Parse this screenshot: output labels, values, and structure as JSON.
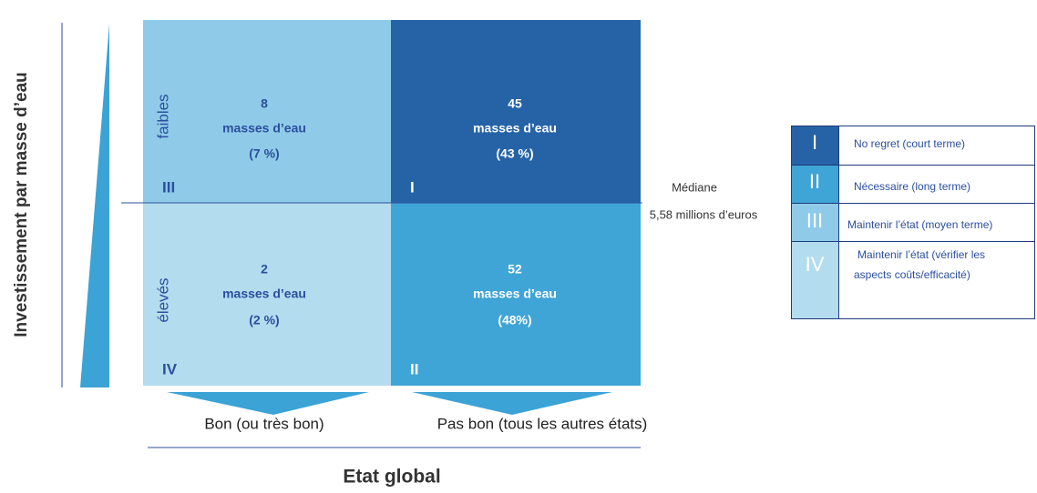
{
  "axis": {
    "y_label": "Investissement par masse d’eau",
    "rows": [
      "faibles",
      "élevés"
    ],
    "x_label": "Etat global",
    "columns": [
      "Bon (ou très bon)",
      "Pas bon (tous les autres états)"
    ]
  },
  "quadrants": [
    {
      "numeral": "III",
      "count": 8,
      "unit": "masses d’eau",
      "share": "(7 %)"
    },
    {
      "numeral": "I",
      "count": 45,
      "unit": "masses d’eau",
      "share": "(43 %)"
    },
    {
      "numeral": "IV",
      "count": 2,
      "unit": "masses d’eau",
      "share": "(2 %)"
    },
    {
      "numeral": "II",
      "count": 52,
      "unit": "masses d’eau",
      "share": "(48%)"
    }
  ],
  "median": {
    "label": "Médiane",
    "value": "5,58 millions d’euros"
  },
  "legend": [
    {
      "numeral": "I",
      "text": [
        "No regret (court terme)"
      ]
    },
    {
      "numeral": "II",
      "text": [
        "Nécessaire (long terme)"
      ]
    },
    {
      "numeral": "III",
      "text": [
        "Maintenir l’état (moyen terme)"
      ]
    },
    {
      "numeral": "IV",
      "text": [
        "Maintenir l’état (vérifier les",
        "aspects coûts/efficacité)"
      ]
    }
  ]
}
